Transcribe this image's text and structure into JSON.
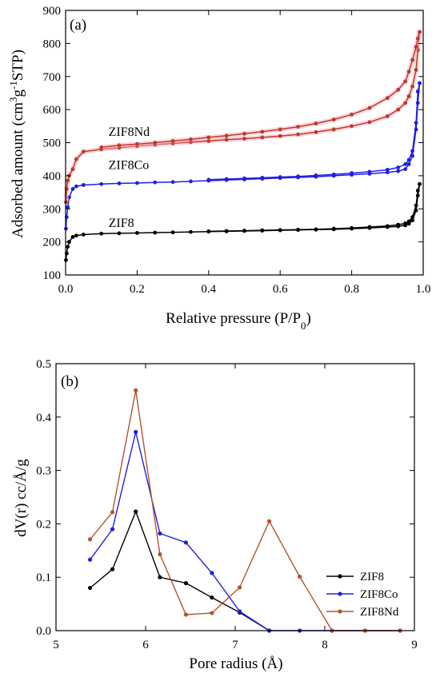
{
  "chart_data": [
    {
      "type": "line",
      "panel_label": "(a)",
      "xlabel": "Relative pressure (P/P0)",
      "ylabel": "Adsorbed amount (cm3g-1STP)",
      "xlim": [
        0,
        1.0
      ],
      "ylim": [
        100,
        900
      ],
      "xticks": [
        0.0,
        0.2,
        0.4,
        0.6,
        0.8,
        1.0
      ],
      "xtick_labels": [
        "0.0",
        "0.2",
        "0.4",
        "0.6",
        "0.8",
        "1.0"
      ],
      "yticks": [
        100,
        200,
        300,
        400,
        500,
        600,
        700,
        800,
        900
      ],
      "ytick_labels": [
        "100",
        "200",
        "300",
        "400",
        "500",
        "600",
        "700",
        "800",
        "900"
      ],
      "annotations": [
        {
          "text": "ZIF8Nd",
          "x": 0.12,
          "y": 520,
          "series": 2
        },
        {
          "text": "ZIF8Co",
          "x": 0.12,
          "y": 420,
          "series": 1
        },
        {
          "text": "ZIF8",
          "x": 0.12,
          "y": 245,
          "series": 0
        }
      ],
      "series": [
        {
          "name": "ZIF8",
          "color": "#000000",
          "adsorption": {
            "x": [
              0.001,
              0.003,
              0.006,
              0.01,
              0.02,
              0.03,
              0.05,
              0.1,
              0.15,
              0.2,
              0.25,
              0.3,
              0.35,
              0.4,
              0.45,
              0.5,
              0.55,
              0.6,
              0.65,
              0.7,
              0.75,
              0.8,
              0.85,
              0.9,
              0.93,
              0.95,
              0.96,
              0.97,
              0.98,
              0.985,
              0.99
            ],
            "y": [
              145,
              165,
              185,
              200,
              215,
              219,
              222,
              225,
              226,
              227,
              228,
              229,
              230,
              231,
              232,
              233,
              234,
              235,
              236,
              237,
              238,
              240,
              242,
              245,
              247,
              250,
              255,
              265,
              295,
              340,
              375
            ]
          },
          "desorption": {
            "x": [
              0.99,
              0.985,
              0.98,
              0.97,
              0.96,
              0.95,
              0.93,
              0.9,
              0.85,
              0.8,
              0.75,
              0.7,
              0.65,
              0.6,
              0.55,
              0.5,
              0.45,
              0.4
            ],
            "y": [
              375,
              355,
              310,
              275,
              262,
              256,
              252,
              248,
              245,
              242,
              240,
              238,
              237,
              236,
              235,
              234,
              233,
              232
            ]
          }
        },
        {
          "name": "ZIF8Co",
          "color": "#1f1fe0",
          "adsorption": {
            "x": [
              0.001,
              0.003,
              0.006,
              0.01,
              0.02,
              0.03,
              0.05,
              0.1,
              0.15,
              0.2,
              0.25,
              0.3,
              0.35,
              0.4,
              0.45,
              0.5,
              0.55,
              0.6,
              0.65,
              0.7,
              0.75,
              0.8,
              0.85,
              0.9,
              0.93,
              0.95,
              0.96,
              0.97,
              0.98,
              0.985,
              0.99
            ],
            "y": [
              240,
              275,
              305,
              335,
              360,
              368,
              372,
              375,
              377,
              378,
              380,
              381,
              383,
              385,
              387,
              389,
              391,
              393,
              395,
              397,
              400,
              403,
              406,
              410,
              414,
              420,
              435,
              460,
              540,
              620,
              680
            ]
          },
          "desorption": {
            "x": [
              0.99,
              0.985,
              0.98,
              0.97,
              0.96,
              0.95,
              0.93,
              0.9,
              0.85,
              0.8,
              0.75,
              0.7,
              0.65,
              0.6,
              0.55,
              0.5,
              0.45,
              0.4
            ],
            "y": [
              680,
              655,
              560,
              475,
              448,
              435,
              425,
              418,
              412,
              408,
              404,
              401,
              398,
              396,
              394,
              392,
              390,
              388
            ]
          }
        },
        {
          "name": "ZIF8Nd",
          "color": "#c0382b",
          "adsorption": {
            "x": [
              0.001,
              0.003,
              0.006,
              0.01,
              0.02,
              0.03,
              0.05,
              0.1,
              0.15,
              0.2,
              0.25,
              0.3,
              0.35,
              0.4,
              0.45,
              0.5,
              0.55,
              0.6,
              0.65,
              0.7,
              0.75,
              0.8,
              0.85,
              0.9,
              0.93,
              0.95,
              0.96,
              0.97,
              0.98,
              0.985,
              0.99
            ],
            "y": [
              320,
              360,
              385,
              400,
              420,
              450,
              473,
              480,
              485,
              490,
              494,
              498,
              502,
              505,
              509,
              512,
              516,
              520,
              525,
              532,
              540,
              550,
              562,
              580,
              600,
              620,
              640,
              670,
              720,
              780,
              835
            ]
          },
          "desorption": {
            "x": [
              0.99,
              0.985,
              0.98,
              0.97,
              0.96,
              0.95,
              0.93,
              0.9,
              0.85,
              0.8,
              0.75,
              0.7,
              0.65,
              0.6,
              0.55,
              0.5,
              0.45,
              0.4,
              0.35,
              0.3,
              0.25,
              0.2,
              0.15,
              0.1
            ],
            "y": [
              835,
              815,
              790,
              750,
              715,
              685,
              660,
              635,
              605,
              585,
              570,
              558,
              548,
              540,
              533,
              527,
              521,
              516,
              510,
              505,
              500,
              496,
              492,
              486
            ]
          }
        }
      ]
    },
    {
      "type": "line",
      "panel_label": "(b)",
      "xlabel": "Pore radius (Å)",
      "ylabel": "dV(r) cc/Å/g",
      "xlim": [
        5,
        9
      ],
      "ylim": [
        0,
        0.5
      ],
      "xticks": [
        5,
        6,
        7,
        8,
        9
      ],
      "xtick_labels": [
        "5",
        "6",
        "7",
        "8",
        "9"
      ],
      "yticks": [
        0.0,
        0.1,
        0.2,
        0.3,
        0.4,
        0.5
      ],
      "ytick_labels": [
        "0.0",
        "0.1",
        "0.2",
        "0.3",
        "0.4",
        "0.5"
      ],
      "legend": {
        "position": "bottom-right"
      },
      "series": [
        {
          "name": "ZIF8",
          "color": "#000000",
          "x": [
            5.38,
            5.63,
            5.89,
            6.16,
            6.45,
            6.74,
            7.05,
            7.38
          ],
          "y": [
            0.08,
            0.115,
            0.223,
            0.1,
            0.089,
            0.062,
            0.034,
            0.0
          ]
        },
        {
          "name": "ZIF8Co",
          "color": "#1f1fe0",
          "x": [
            5.38,
            5.63,
            5.89,
            6.16,
            6.45,
            6.74,
            7.05,
            7.38,
            7.72,
            8.08,
            8.45,
            8.84
          ],
          "y": [
            0.133,
            0.19,
            0.372,
            0.182,
            0.165,
            0.108,
            0.036,
            0.0,
            0.0,
            0.0,
            0.0,
            0.0
          ]
        },
        {
          "name": "ZIF8Nd",
          "color": "#b5532a",
          "x": [
            5.38,
            5.63,
            5.89,
            6.16,
            6.45,
            6.74,
            7.05,
            7.38,
            7.72,
            8.08,
            8.45,
            8.84
          ],
          "y": [
            0.171,
            0.222,
            0.45,
            0.143,
            0.03,
            0.033,
            0.081,
            0.205,
            0.101,
            0.0,
            0.0,
            0.0
          ]
        }
      ]
    }
  ]
}
